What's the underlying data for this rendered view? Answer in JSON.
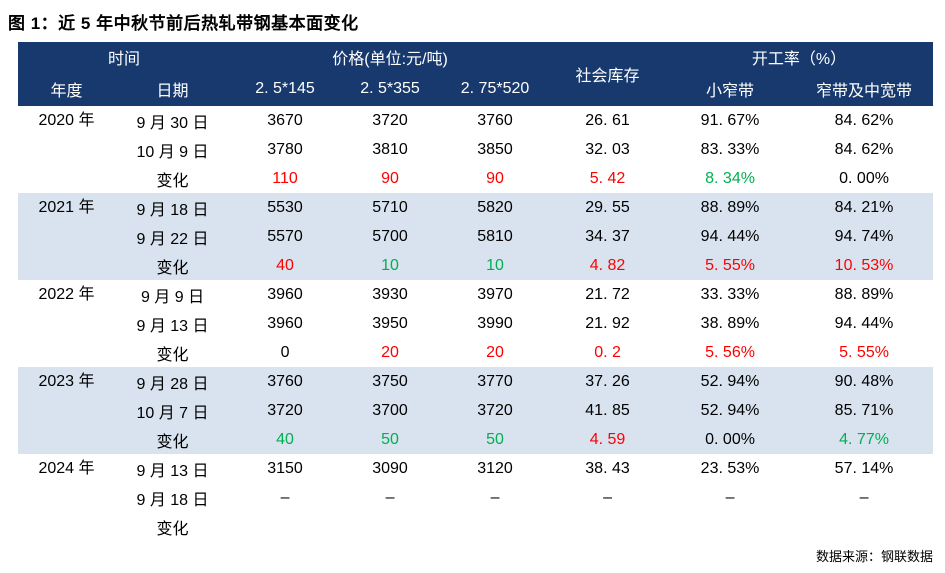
{
  "title": "图 1：近 5 年中秋节前后热轧带钢基本面变化",
  "footer": "数据来源：钢联数据",
  "colors": {
    "header_bg": "#17396e",
    "band_bg": "#d8e3ef",
    "red": "#ff0000",
    "green": "#00b050",
    "text": "#000000",
    "header_text": "#ffffff",
    "page_bg": "#ffffff"
  },
  "chart_data": {
    "type": "table",
    "title": "图 1：近 5 年中秋节前后热轧带钢基本面变化",
    "header": {
      "time_group": "时间",
      "price_group": "价格(单位:元/吨)",
      "inventory": "社会库存",
      "operating_group": "开工率（%）",
      "year": "年度",
      "date": "日期",
      "price_cols": [
        "2. 5*145",
        "2. 5*355",
        "2. 75*520"
      ],
      "operating_cols": [
        "小窄带",
        "窄带及中宽带"
      ]
    },
    "color_legend": {
      "k": "black",
      "r": "red",
      "g": "green"
    },
    "groups": [
      {
        "year": "2020 年",
        "shaded": false,
        "rows": [
          {
            "date": "9 月 30 日",
            "values": [
              "3670",
              "3720",
              "3760",
              "26. 61",
              "91. 67%",
              "84. 62%"
            ],
            "colors": [
              "k",
              "k",
              "k",
              "k",
              "k",
              "k"
            ]
          },
          {
            "date": "10 月 9 日",
            "values": [
              "3780",
              "3810",
              "3850",
              "32. 03",
              "83. 33%",
              "84. 62%"
            ],
            "colors": [
              "k",
              "k",
              "k",
              "k",
              "k",
              "k"
            ]
          },
          {
            "date": "变化",
            "values": [
              "110",
              "90",
              "90",
              "5. 42",
              "8. 34%",
              "0. 00%"
            ],
            "colors": [
              "r",
              "r",
              "r",
              "r",
              "g",
              "k"
            ]
          }
        ]
      },
      {
        "year": "2021 年",
        "shaded": true,
        "rows": [
          {
            "date": "9 月 18 日",
            "values": [
              "5530",
              "5710",
              "5820",
              "29. 55",
              "88. 89%",
              "84. 21%"
            ],
            "colors": [
              "k",
              "k",
              "k",
              "k",
              "k",
              "k"
            ]
          },
          {
            "date": "9 月 22 日",
            "values": [
              "5570",
              "5700",
              "5810",
              "34. 37",
              "94. 44%",
              "94. 74%"
            ],
            "colors": [
              "k",
              "k",
              "k",
              "k",
              "k",
              "k"
            ]
          },
          {
            "date": "变化",
            "values": [
              "40",
              "10",
              "10",
              "4. 82",
              "5. 55%",
              "10. 53%"
            ],
            "colors": [
              "r",
              "g",
              "g",
              "r",
              "r",
              "r"
            ]
          }
        ]
      },
      {
        "year": "2022 年",
        "shaded": false,
        "rows": [
          {
            "date": "9 月 9 日",
            "values": [
              "3960",
              "3930",
              "3970",
              "21. 72",
              "33. 33%",
              "88. 89%"
            ],
            "colors": [
              "k",
              "k",
              "k",
              "k",
              "k",
              "k"
            ]
          },
          {
            "date": "9 月 13 日",
            "values": [
              "3960",
              "3950",
              "3990",
              "21. 92",
              "38. 89%",
              "94. 44%"
            ],
            "colors": [
              "k",
              "k",
              "k",
              "k",
              "k",
              "k"
            ]
          },
          {
            "date": "变化",
            "values": [
              "0",
              "20",
              "20",
              "0. 2",
              "5. 56%",
              "5. 55%"
            ],
            "colors": [
              "k",
              "r",
              "r",
              "r",
              "r",
              "r"
            ]
          }
        ]
      },
      {
        "year": "2023 年",
        "shaded": true,
        "rows": [
          {
            "date": "9 月 28 日",
            "values": [
              "3760",
              "3750",
              "3770",
              "37. 26",
              "52. 94%",
              "90. 48%"
            ],
            "colors": [
              "k",
              "k",
              "k",
              "k",
              "k",
              "k"
            ]
          },
          {
            "date": "10 月 7 日",
            "values": [
              "3720",
              "3700",
              "3720",
              "41. 85",
              "52. 94%",
              "85. 71%"
            ],
            "colors": [
              "k",
              "k",
              "k",
              "k",
              "k",
              "k"
            ]
          },
          {
            "date": "变化",
            "values": [
              "40",
              "50",
              "50",
              "4. 59",
              "0. 00%",
              "4. 77%"
            ],
            "colors": [
              "g",
              "g",
              "g",
              "r",
              "k",
              "g"
            ]
          }
        ]
      },
      {
        "year": "2024 年",
        "shaded": false,
        "rows": [
          {
            "date": "9 月 13 日",
            "values": [
              "3150",
              "3090",
              "3120",
              "38. 43",
              "23. 53%",
              "57. 14%"
            ],
            "colors": [
              "k",
              "k",
              "k",
              "k",
              "k",
              "k"
            ]
          },
          {
            "date": "9 月 18 日",
            "values": [
              "–",
              "–",
              "–",
              "–",
              "–",
              "–"
            ],
            "colors": [
              "k",
              "k",
              "k",
              "k",
              "k",
              "k"
            ]
          },
          {
            "date": "变化",
            "values": [
              "",
              "",
              "",
              "",
              "",
              ""
            ],
            "colors": [
              "k",
              "k",
              "k",
              "k",
              "k",
              "k"
            ]
          }
        ]
      }
    ]
  }
}
